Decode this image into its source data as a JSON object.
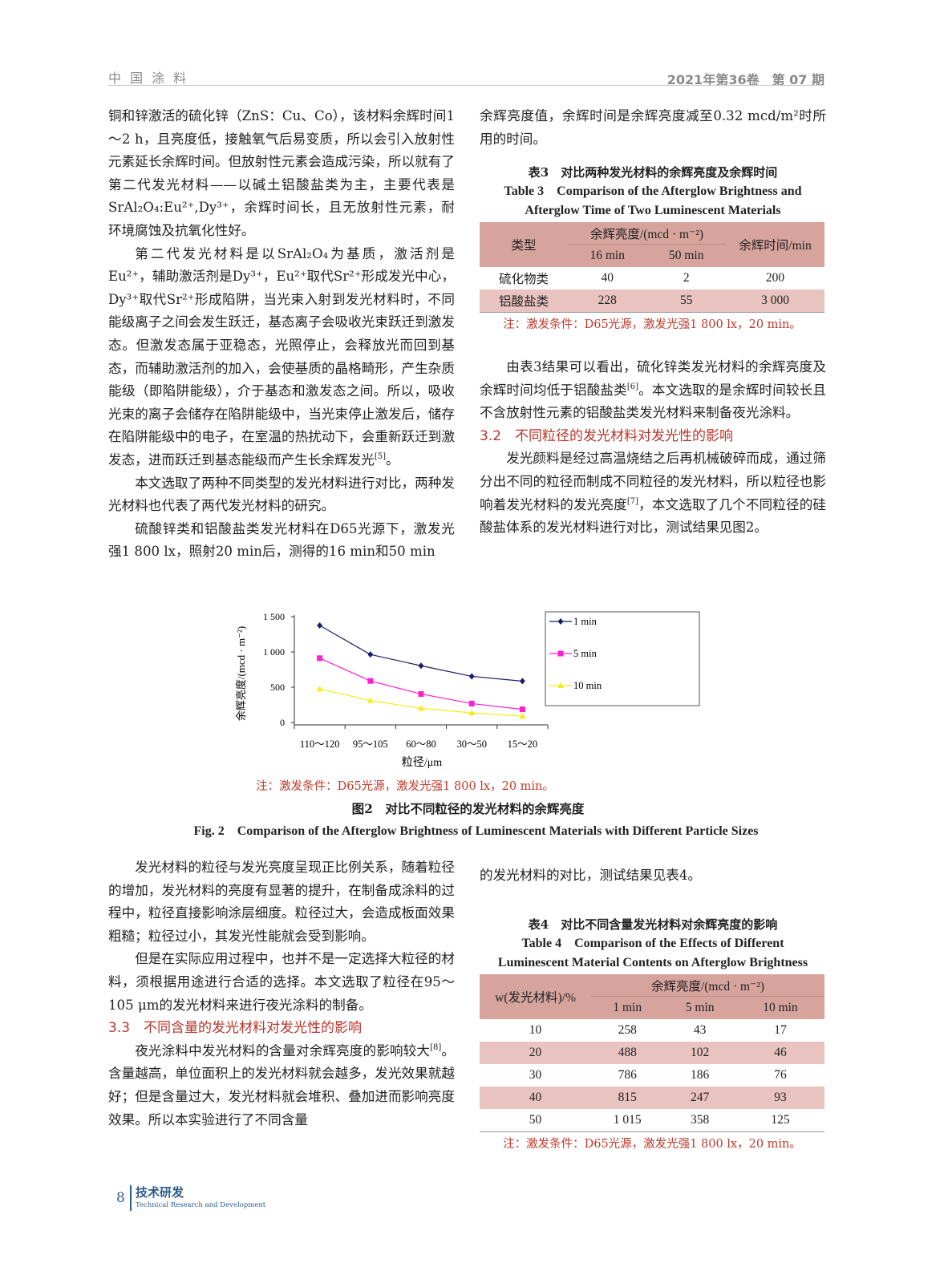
{
  "header": {
    "journal": "中 国 涂 料",
    "issue": "2021年第36卷　第 07 期"
  },
  "left_top": {
    "p1": "铜和锌激活的硫化锌（ZnS：Cu、Co），该材料余辉时间1～2 h，且亮度低，接触氧气后易变质，所以会引入放射性元素延长余辉时间。但放射性元素会造成污染，所以就有了第二代发光材料——以碱土铝酸盐类为主，主要代表是SrAl₂O₄:Eu²⁺,Dy³⁺，余辉时间长，且无放射性元素，耐环境腐蚀及抗氧化性好。",
    "p2": "第二代发光材料是以SrAl₂O₄为基质，激活剂是Eu²⁺，辅助激活剂是Dy³⁺，Eu²⁺取代Sr²⁺形成发光中心，Dy³⁺取代Sr²⁺形成陷阱，当光束入射到发光材料时，不同能级离子之间会发生跃迁，基态离子会吸收光束跃迁到激发态。但激发态属于亚稳态，光照停止，会释放光而回到基态，而辅助激活剂的加入，会使基质的晶格畸形，产生杂质能级（即陷阱能级），介于基态和激发态之间。所以，吸收光束的离子会储存在陷阱能级中，当光束停止激发后，储存在陷阱能级中的电子，在室温的热扰动下，会重新跃迁到激发态，进而跃迁到基态能级而产生长余辉发光",
    "p2_ref": "[5]",
    "p2_end": "。",
    "p3": "本文选取了两种不同类型的发光材料进行对比，两种发光材料也代表了两代发光材料的研究。",
    "p4": "硫酸锌类和铝酸盐类发光材料在D65光源下，激发光强1 800 lx，照射20 min后，测得的16 min和50 min"
  },
  "right_top": {
    "p1": "余辉亮度值，余辉时间是余辉亮度减至0.32 mcd/m²时所用的时间。",
    "p2a": "由表3结果可以看出，硫化锌类发光材料的余辉亮度及余辉时间均低于铝酸盐类",
    "p2_ref": "[6]",
    "p2b": "。本文选取的是余辉时间较长且不含放射性元素的铝酸盐类发光材料来制备夜光涂料。",
    "h32": "3.2　不同粒径的发光材料对发光性的影响",
    "p3a": "发光颜料是经过高温烧结之后再机械破碎而成，通过筛分出不同的粒径而制成不同粒径的发光材料，所以粒径也影响着发光材料的发光亮度",
    "p3_ref": "[7]",
    "p3b": "，本文选取了几个不同粒径的硅酸盐体系的发光材料进行对比，测试结果见图2。"
  },
  "table3": {
    "title_cn": "表3　对比两种发光材料的余辉亮度及余辉时间",
    "title_en1": "Table 3　Comparison of the Afterglow Brightness and",
    "title_en2": "Afterglow Time of Two Luminescent Materials",
    "h_type": "类型",
    "h_bright": "余辉亮度/(mcd · m⁻²)",
    "h_16": "16 min",
    "h_50": "50 min",
    "h_time": "余辉时间/min",
    "rows": [
      [
        "硫化物类",
        "40",
        "2",
        "200"
      ],
      [
        "铝酸盐类",
        "228",
        "55",
        "3 000"
      ]
    ],
    "note": "注：激发条件：D65光源，激发光强1 800 lx，20 min。"
  },
  "chart_data": {
    "type": "line",
    "categories": [
      "110～120",
      "95～105",
      "60～80",
      "30～50",
      "15～20"
    ],
    "xlabel": "粒径/μm",
    "ylabel": "余辉亮度/(mcd · m⁻²)",
    "ylim": [
      0,
      1500
    ],
    "yticks": [
      "0",
      "500",
      "1 000",
      "1 500"
    ],
    "grid": false,
    "legend": "right",
    "series": [
      {
        "name": "1 min",
        "values": [
          1375,
          964,
          804,
          654,
          586
        ],
        "color": "#1b1b6b",
        "marker": "diamond"
      },
      {
        "name": "5 min",
        "values": [
          911,
          589,
          404,
          268,
          186
        ],
        "color": "#ff1fd0",
        "marker": "square"
      },
      {
        "name": "10 min",
        "values": [
          475,
          311,
          200,
          136,
          89
        ],
        "color": "#f2ee1a",
        "marker": "triangle"
      }
    ]
  },
  "figure": {
    "note": "注：激发条件：D65光源，激发光强1 800 lx，20 min。",
    "cap_cn": "图2　对比不同粒径的发光材料的余辉亮度",
    "cap_en": "Fig. 2　Comparison of the Afterglow Brightness of Luminescent Materials with Different Particle Sizes"
  },
  "left_bottom": {
    "p1": "发光材料的粒径与发光亮度呈现正比例关系，随着粒径的增加，发光材料的亮度有显著的提升，在制备成涂料的过程中，粒径直接影响涂层细度。粒径过大，会造成板面效果粗糙；粒径过小，其发光性能就会受到影响。",
    "p2": "但是在实际应用过程中，也并不是一定选择大粒径的材料，须根据用途进行合适的选择。本文选取了粒径在95～105 μm的发光材料来进行夜光涂料的制备。",
    "h33": "3.3　不同含量的发光材料对发光性的影响",
    "p3a": "夜光涂料中发光材料的含量对余辉亮度的影响较大",
    "p3_ref": "[8]",
    "p3b": "。含量越高，单位面积上的发光材料就会越多，发光效果就越好；但是含量过大，发光材料就会堆积、叠加进而影响亮度效果。所以本实验进行了不同含量"
  },
  "right_bottom": {
    "p1": "的发光材料的对比，测试结果见表4。"
  },
  "table4": {
    "title_cn": "表4　对比不同含量发光材料对余辉亮度的影响",
    "title_en1": "Table 4　Comparison of the Effects of Different",
    "title_en2": "Luminescent Material Contents on Afterglow Brightness",
    "h_w": "w(发光材料)/%",
    "h_bright": "余辉亮度/(mcd · m⁻²)",
    "h_1": "1 min",
    "h_5": "5 min",
    "h_10": "10 min",
    "rows": [
      [
        "10",
        "258",
        "43",
        "17"
      ],
      [
        "20",
        "488",
        "102",
        "46"
      ],
      [
        "30",
        "786",
        "186",
        "76"
      ],
      [
        "40",
        "815",
        "247",
        "93"
      ],
      [
        "50",
        "1 015",
        "358",
        "125"
      ]
    ],
    "note": "注：激发条件：D65光源，激发光强1 800 lx，20 min。"
  },
  "footer": {
    "page": "8",
    "section_cn": "技术研发",
    "section_en": "Technical Research and Development"
  },
  "colors": {
    "table_header": "#d6a39d",
    "table_alt_row": "#e9c3bf",
    "heading": "#b5352a",
    "note": "#c0392b"
  }
}
